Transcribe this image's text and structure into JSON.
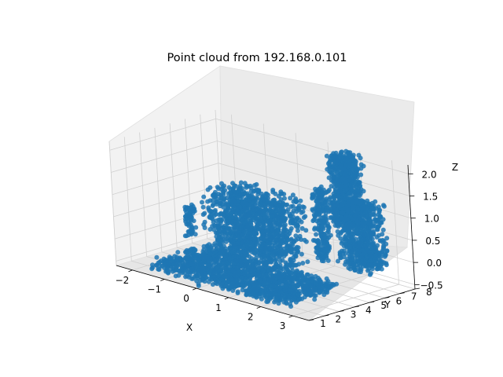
{
  "chart_data": {
    "type": "scatter",
    "projection": "3d",
    "title": "Point cloud from 192.168.0.101",
    "xlabel": "X",
    "ylabel": "Y",
    "zlabel": "Z",
    "xlim": [
      -2.5,
      3.5
    ],
    "ylim": [
      1,
      8
    ],
    "zlim": [
      -0.6,
      2.2
    ],
    "xticks": [
      "−2",
      "−1",
      "0",
      "1",
      "2",
      "3"
    ],
    "yticks": [
      "1",
      "2",
      "3",
      "4",
      "5",
      "6",
      "7",
      "8"
    ],
    "zticks": [
      "−0.5",
      "0.0",
      "0.5",
      "1.0",
      "1.5",
      "2.0"
    ],
    "grid": true,
    "color": "#1f77b4",
    "series": [
      {
        "clusters": [
          {
            "kind": "floor",
            "x": [
              -1.6,
              2.6
            ],
            "y": [
              1.4,
              5.0
            ],
            "z": [
              -0.55,
              -0.3
            ]
          },
          {
            "kind": "left-block",
            "x": [
              -1.2,
              1.0
            ],
            "y": [
              4.0,
              6.5
            ],
            "z": [
              -0.4,
              1.1
            ]
          },
          {
            "kind": "center-pillar",
            "x": [
              1.1,
              1.35
            ],
            "y": [
              6.5,
              7.2
            ],
            "z": [
              -0.3,
              1.3
            ]
          },
          {
            "kind": "tall-box",
            "x": [
              1.6,
              2.2
            ],
            "y": [
              6.5,
              7.8
            ],
            "z": [
              0.6,
              2.2
            ]
          },
          {
            "kind": "right-box",
            "x": [
              2.0,
              3.0
            ],
            "y": [
              6.0,
              7.5
            ],
            "z": [
              -0.2,
              1.3
            ]
          },
          {
            "kind": "left-post",
            "x": [
              -1.5,
              -1.35
            ],
            "y": [
              3.5,
              4.0
            ],
            "z": [
              0.0,
              0.7
            ]
          },
          {
            "kind": "stray",
            "x": [
              0.0,
              0.1
            ],
            "y": [
              1.0,
              1.2
            ],
            "z": [
              -0.55,
              -0.5
            ]
          }
        ]
      }
    ]
  }
}
